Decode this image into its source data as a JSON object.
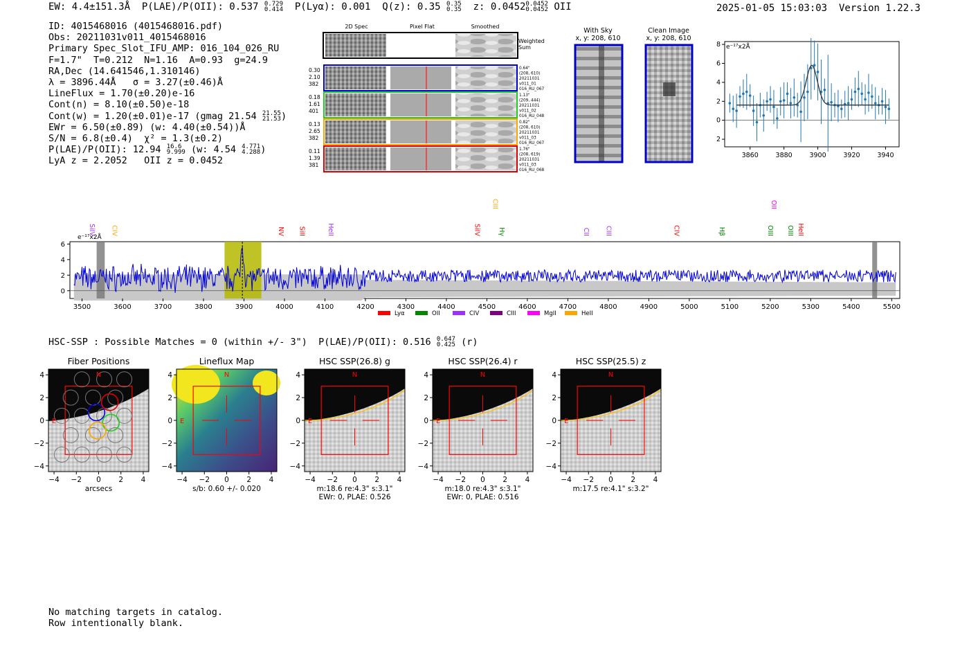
{
  "header": {
    "ew": "EW: 4.4±151.3Å",
    "plae_label": "P(LAE)/P(OII): 0.537",
    "plae_hi": "0.729",
    "plae_lo": "0.414",
    "plya": "P(Lyα): 0.001",
    "qz_label": "Q(z): 0.35",
    "qz_hi": "0.35",
    "qz_lo": "0.35",
    "z_label": "z: 0.0452",
    "z_hi": "0.0452",
    "z_lo": "0.0452",
    "z_line": "OII",
    "timestamp": "2025-01-05 15:03:03",
    "version": "Version 1.22.3"
  },
  "info": {
    "id": "ID: 4015468016 (4015468016.pdf)",
    "obs": "Obs: 20211031v011_4015468016",
    "primary": "Primary Spec_Slot_IFU_AMP: 016_104_026_RU",
    "fparams": "F=1.7\"  T=0.212  N=1.16  A=0.93  g=24.9",
    "radec": "RA,Dec (14.641546,1.310146)",
    "lambda": "λ = 3896.44Å   σ = 3.27(±0.46)Å",
    "lineflux": "LineFlux = 1.70(±0.20)e-16",
    "contn": "Cont(n) = 8.10(±0.50)e-18",
    "contw": "Cont(w) = 1.20(±0.01)e-17 (gmag 21.54",
    "contw_hi": "21.55",
    "contw_lo": "21.53",
    "ewr": "EWr = 6.50(±0.89) (w: 4.40(±0.54))Å",
    "sn": "S/N = 6.8(±0.4)  χ² = 1.3(±0.2)",
    "plae2": "P(LAE)/P(OII): 12.94",
    "plae2_hi": "16.6",
    "plae2_lo": "9.999",
    "plae2_w": "(w: 4.54",
    "plae2_w_hi": "4.771",
    "plae2_w_lo": "4.288",
    "lyaz": "LyA z = 2.2052   OII z = 0.0452"
  },
  "cutouts": {
    "headers": [
      "2D Spec",
      "Pixel Flat",
      "Smoothed"
    ],
    "weighted_label_1": "Weighted",
    "weighted_label_2": "Sum",
    "rows": [
      {
        "left": [
          "0.30",
          "2.10",
          "382"
        ],
        "right": [
          "0.64\"",
          "(208, 610)",
          "20211031",
          "v011_01",
          "016_RU_067"
        ],
        "color": "#0000dd"
      },
      {
        "left": [
          "0.18",
          "1.61",
          "401"
        ],
        "right": [
          "1.13\"",
          "(209, 444)",
          "20211031",
          "v011_02",
          "016_RU_048"
        ],
        "color": "#22cc22"
      },
      {
        "left": [
          "0.13",
          "2.65",
          "382"
        ],
        "right": [
          "0.82\"",
          "(208, 610)",
          "20211031",
          "v011_03",
          "016_RU_067"
        ],
        "color": "#ffa500"
      },
      {
        "left": [
          "0.11",
          "1.39",
          "381"
        ],
        "right": [
          "1.76\"",
          "(208, 619)",
          "20211031",
          "v011_03",
          "016_RU_068"
        ],
        "color": "#dd0000"
      }
    ]
  },
  "sky": {
    "with_sky_title": "With Sky",
    "with_sky_coords": "x, y: 208, 610",
    "clean_title": "Clean Image",
    "clean_coords": "x, y: 208, 610"
  },
  "line_fit": {
    "unit_label": "e⁻¹⁷x2Å",
    "x_ticks": [
      "3860",
      "3880",
      "3900",
      "3920",
      "3940"
    ],
    "y_ticks": [
      "8",
      "6",
      "4",
      "2",
      "0",
      "−2"
    ]
  },
  "spectrum": {
    "unit_label": "e⁻¹⁷x2Å",
    "x_ticks": [
      "3500",
      "3600",
      "3700",
      "3800",
      "3900",
      "4000",
      "4100",
      "4200",
      "4300",
      "4400",
      "4500",
      "4600",
      "4700",
      "4800",
      "4900",
      "5000",
      "5100",
      "5200",
      "5300",
      "5400",
      "5500"
    ],
    "y_ticks": [
      "6",
      "4",
      "2",
      "0"
    ],
    "lines": [
      {
        "name": "SiIV",
        "color": "#9b30ff",
        "wave": 3524,
        "high": false
      },
      {
        "name": "CIV",
        "color": "#ffa500",
        "wave": 3579,
        "high": false
      },
      {
        "name": "NV",
        "color": "#ff0000",
        "wave": 3991,
        "high": false
      },
      {
        "name": "SiII",
        "color": "#ff0000",
        "wave": 4043,
        "high": false
      },
      {
        "name": "HeII",
        "color": "#9b30ff",
        "wave": 4114,
        "high": false
      },
      {
        "name": "CIII",
        "color": "#ffa500",
        "wave": 4520,
        "high": true
      },
      {
        "name": "SiIV",
        "color": "#ff0000",
        "wave": 4475,
        "high": false
      },
      {
        "name": "Hγ",
        "color": "#008800",
        "wave": 4536,
        "high": false
      },
      {
        "name": "CII",
        "color": "#9b30ff",
        "wave": 4745,
        "high": false
      },
      {
        "name": "CIII",
        "color": "#9b30ff",
        "wave": 4800,
        "high": false
      },
      {
        "name": "CIV",
        "color": "#ff0000",
        "wave": 4968,
        "high": false
      },
      {
        "name": "Hβ",
        "color": "#008800",
        "wave": 5080,
        "high": false
      },
      {
        "name": "OII",
        "color": "#ff00ff",
        "wave": 5208,
        "high": true
      },
      {
        "name": "OIII",
        "color": "#008800",
        "wave": 5199,
        "high": false
      },
      {
        "name": "OIII",
        "color": "#008800",
        "wave": 5249,
        "high": false
      },
      {
        "name": "HeII",
        "color": "#ff0000",
        "wave": 5275,
        "high": false
      }
    ],
    "legend": [
      {
        "name": "Lyα",
        "color": "#ff0000"
      },
      {
        "name": "OII",
        "color": "#008800"
      },
      {
        "name": "CIV",
        "color": "#9b30ff"
      },
      {
        "name": "CIII",
        "color": "#800080"
      },
      {
        "name": "MgII",
        "color": "#ff00ff"
      },
      {
        "name": "HeII",
        "color": "#ffa500"
      }
    ]
  },
  "hsc": {
    "line": "HSC-SSP : Possible Matches = 0 (within +/- 3\")  P(LAE)/P(OII): 0.516",
    "hi": "0.647",
    "lo": "0.425",
    "band": "(r)"
  },
  "panels": [
    {
      "title": "Fiber Positions",
      "cap1": "arcsecs",
      "cap2": ""
    },
    {
      "title": "Lineflux Map",
      "cap1": "s/b: 0.60 +/- 0.020",
      "cap2": ""
    },
    {
      "title": "HSC SSP(26.8) g",
      "cap1": "m:18.6  re:4.3\"  s:3.1\"",
      "cap2": "EWr: 0, PLAE: 0.526"
    },
    {
      "title": "HSC SSP(26.4) r",
      "cap1": "m:18.0  re:4.3\"  s:3.1\"",
      "cap2": "EWr: 0, PLAE: 0.516"
    },
    {
      "title": "HSC SSP(25.5) z",
      "cap1": "m:17.5  re:4.1\"  s:3.2\"",
      "cap2": ""
    }
  ],
  "panel_axis": {
    "x_ticks": [
      "−4",
      "−2",
      "0",
      "2",
      "4"
    ],
    "y_ticks": [
      "4",
      "2",
      "0",
      "−2",
      "−4"
    ],
    "north": "N",
    "east": "E"
  },
  "footer": {
    "line1": "No matching targets in catalog.",
    "line2": "Row intentionally blank."
  },
  "chart_data": [
    {
      "type": "scatter",
      "title": "",
      "xlabel": "",
      "ylabel": "e-17x2Å",
      "xlim": [
        3845,
        3948
      ],
      "ylim": [
        -2.8,
        8.3
      ],
      "series": [
        {
          "x": [
            3848,
            3850,
            3852,
            3854,
            3856,
            3858,
            3860,
            3862,
            3864,
            3866,
            3868,
            3870,
            3872,
            3874,
            3876,
            3878,
            3880,
            3882,
            3884,
            3886,
            3888,
            3890,
            3892,
            3894,
            3896,
            3898,
            3900,
            3902,
            3904,
            3906,
            3908,
            3910,
            3912,
            3914,
            3916,
            3918,
            3920,
            3922,
            3924,
            3926,
            3928,
            3930,
            3932,
            3934,
            3936,
            3938,
            3940,
            3942
          ],
          "y": [
            1.8,
            1.2,
            1.0,
            2.5,
            2.8,
            3.0,
            2.6,
            1.0,
            -0.2,
            1.6,
            0.5,
            2.0,
            2.2,
            1.4,
            0.2,
            2.0,
            2.1,
            2.8,
            1.8,
            2.4,
            1.6,
            0.9,
            2.4,
            3.0,
            5.5,
            5.8,
            5.1,
            3.0,
            3.2,
            1.8,
            1.9,
            1.6,
            1.5,
            1.2,
            1.7,
            1.8,
            2.2,
            3.0,
            3.3,
            2.8,
            2.2,
            2.9,
            2.5,
            1.8,
            1.6,
            2.0,
            1.4,
            1.2
          ]
        }
      ],
      "fit": {
        "type": "gaussian",
        "center": 3896.44,
        "sigma": 3.27,
        "continuum": 1.6,
        "amplitude": 4.2
      }
    },
    {
      "type": "line",
      "title": "",
      "xlabel": "",
      "ylabel": "e-17x2Å",
      "xlim": [
        3470,
        5520
      ],
      "ylim": [
        -1.0,
        6.3
      ],
      "series": [
        {
          "name": "spectrum",
          "x_range": [
            3480,
            5510
          ],
          "baseline": 1.6,
          "peak": {
            "x": 3896,
            "y": 6.0
          }
        }
      ],
      "highlight_band": [
        3852,
        3943
      ],
      "bad_regions": [
        [
          3536,
          3556
        ],
        [
          5452,
          5464
        ]
      ]
    }
  ]
}
